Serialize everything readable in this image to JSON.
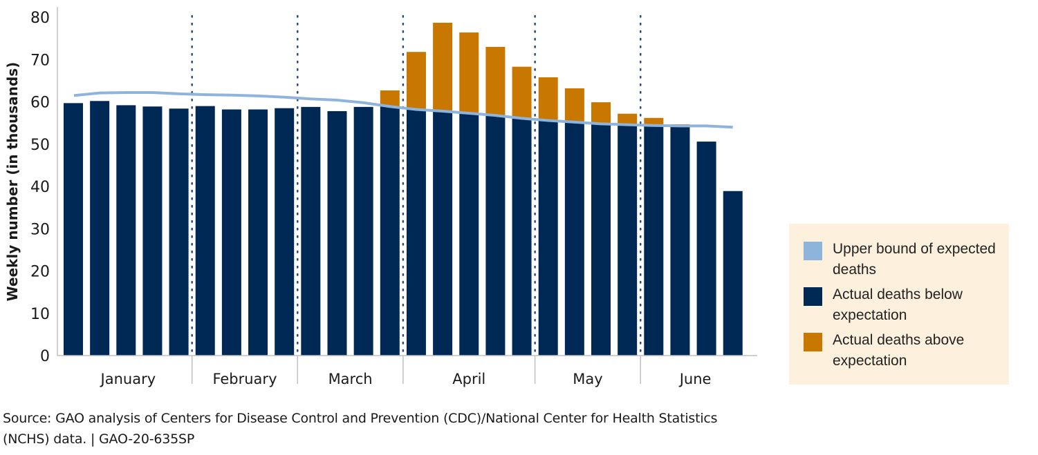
{
  "chart_data": {
    "type": "bar",
    "title": "",
    "xlabel": "",
    "ylabel": "Weekly number (in thousands)",
    "ylim": [
      0,
      80
    ],
    "yticks": [
      0,
      10,
      20,
      30,
      40,
      50,
      60,
      70,
      80
    ],
    "grid": false,
    "stacked": true,
    "legend_position": "right",
    "months": [
      {
        "label": "January",
        "weeks": 5
      },
      {
        "label": "February",
        "weeks": 4
      },
      {
        "label": "March",
        "weeks": 4
      },
      {
        "label": "April",
        "weeks": 5
      },
      {
        "label": "May",
        "weeks": 4
      },
      {
        "label": "June",
        "weeks": 4
      }
    ],
    "weeks": [
      1,
      2,
      3,
      4,
      5,
      6,
      7,
      8,
      9,
      10,
      11,
      12,
      13,
      14,
      15,
      16,
      17,
      18,
      19,
      20,
      21,
      22,
      23,
      24,
      25,
      26
    ],
    "series": [
      {
        "name": "Upper bound of expected deaths",
        "type": "line",
        "color": "#8fb4dc",
        "values": [
          61.5,
          62.1,
          62.2,
          62.2,
          61.9,
          61.7,
          61.6,
          61.4,
          61.1,
          60.7,
          60.4,
          59.8,
          58.9,
          58.2,
          57.8,
          57.3,
          56.8,
          56.1,
          55.6,
          55.2,
          54.8,
          54.6,
          54.4,
          54.3,
          54.3,
          54.0
        ]
      },
      {
        "name": "Actual deaths",
        "type": "bar",
        "values": [
          59.7,
          60.2,
          59.2,
          58.9,
          58.4,
          59.0,
          58.2,
          58.2,
          58.5,
          58.8,
          57.8,
          58.8,
          62.7,
          71.8,
          78.7,
          76.4,
          73.0,
          68.3,
          65.8,
          63.2,
          59.9,
          57.2,
          56.2,
          54.7,
          50.6,
          38.9
        ]
      }
    ],
    "colors": {
      "below": "#002855",
      "above": "#c87800",
      "line": "#8fb4dc",
      "axis": "#bfbfbf",
      "divider": "#2a4a6e"
    }
  },
  "legend": {
    "items": [
      {
        "label": "Upper bound of expected deaths",
        "color": "#8fb4dc"
      },
      {
        "label": "Actual deaths below expectation",
        "color": "#002855"
      },
      {
        "label": "Actual deaths above expectation",
        "color": "#c87800"
      }
    ]
  },
  "source": {
    "line1": "Source: GAO analysis of Centers for Disease Control and Prevention (CDC)/National Center for Health Statistics",
    "line2": "(NCHS) data. | GAO-20-635SP"
  }
}
